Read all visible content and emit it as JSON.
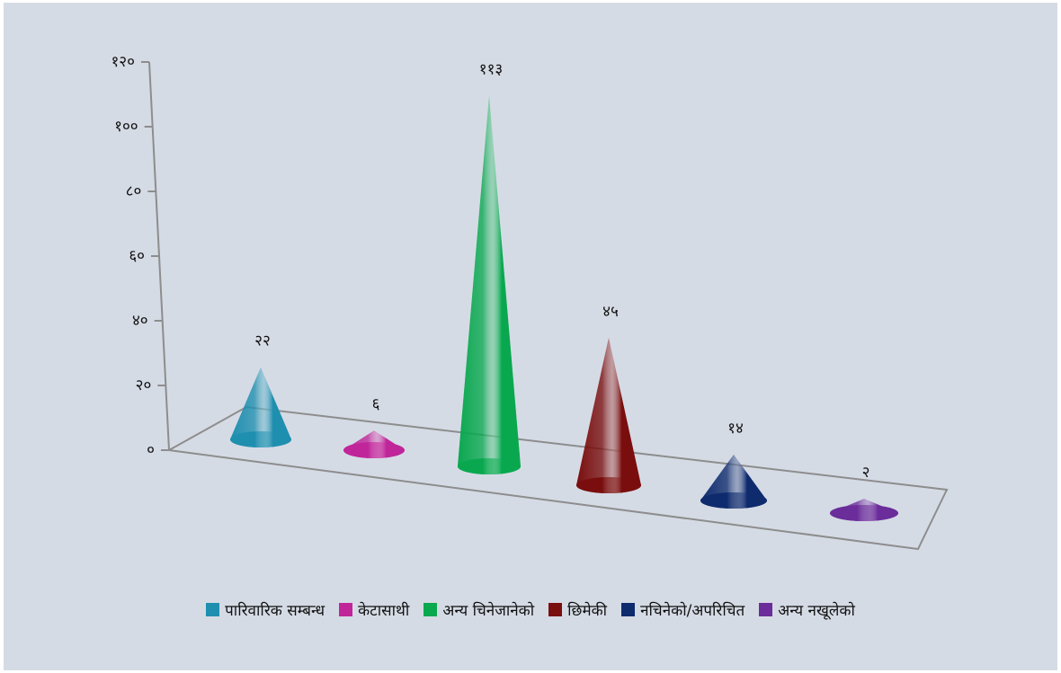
{
  "chart_data": {
    "type": "bar",
    "shape": "cone-3d",
    "title": "",
    "xlabel": "",
    "ylabel": "",
    "ylim": [
      0,
      120
    ],
    "y_ticks": [
      0,
      20,
      40,
      60,
      80,
      100,
      120
    ],
    "y_tick_labels": [
      "०",
      "२०",
      "४०",
      "६०",
      "८०",
      "१००",
      "१२०"
    ],
    "categories": [
      "पारिवारिक सम्बन्ध",
      "केटासाथी",
      "अन्य चिनेजानेको",
      "छिमेकी",
      "नचिनेको/अपरिचित",
      "अन्य नखूलेको"
    ],
    "values": [
      22,
      6,
      113,
      45,
      14,
      2
    ],
    "data_labels": [
      "२२",
      "६",
      "११३",
      "४५",
      "१४",
      "२"
    ],
    "colors": [
      "#1f8fb0",
      "#c0269a",
      "#0aa84f",
      "#7a0f0f",
      "#0e2b6e",
      "#6a2d9a"
    ],
    "legend_position": "bottom",
    "grid": false
  }
}
